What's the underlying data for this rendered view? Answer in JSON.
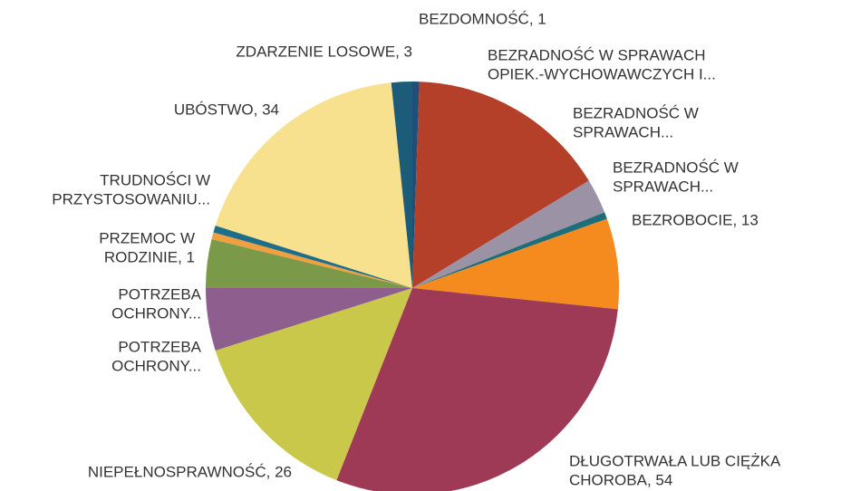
{
  "chart_data": {
    "type": "pie",
    "labels": [
      [
        "BEZDOMNOŚĆ, 1"
      ],
      [
        "BEZRADNOŚĆ W SPRAWACH",
        "OPIEK.-WYCHOWAWCZYCH I..."
      ],
      [
        "BEZRADNOŚĆ W",
        "SPRAWACH..."
      ],
      [
        "BEZRADNOŚĆ W",
        "SPRAWACH..."
      ],
      [
        "BEZROBOCIE, 13"
      ],
      [
        "DŁUGOTRWAŁA LUB CIĘŻKA",
        "CHOROBA, 54"
      ],
      [
        "NIEPEŁNOSPRAWNOŚĆ, 26"
      ],
      [
        "POTRZEBA",
        "OCHRONY..."
      ],
      [
        "POTRZEBA",
        "OCHRONY..."
      ],
      [
        "PRZEMOC W",
        "RODZINIE, 1"
      ],
      [
        "TRUDNOŚCI W",
        "PRZYSTOSOWANIU..."
      ],
      [
        "UBÓSTWO, 34"
      ],
      [
        "ZDARZENIE LOSOWE, 3"
      ]
    ],
    "values": [
      1,
      29,
      5,
      1,
      13,
      54,
      26,
      9,
      7,
      1,
      1,
      34,
      3
    ],
    "colors": [
      "#1f4e79",
      "#b5402a",
      "#9b93a5",
      "#1e6e7a",
      "#f58a1f",
      "#9e3a55",
      "#c9c84a",
      "#8e5f8e",
      "#7a9a4a",
      "#f0a040",
      "#1e6e8a",
      "#f7e08e",
      "#1d5c78"
    ]
  }
}
